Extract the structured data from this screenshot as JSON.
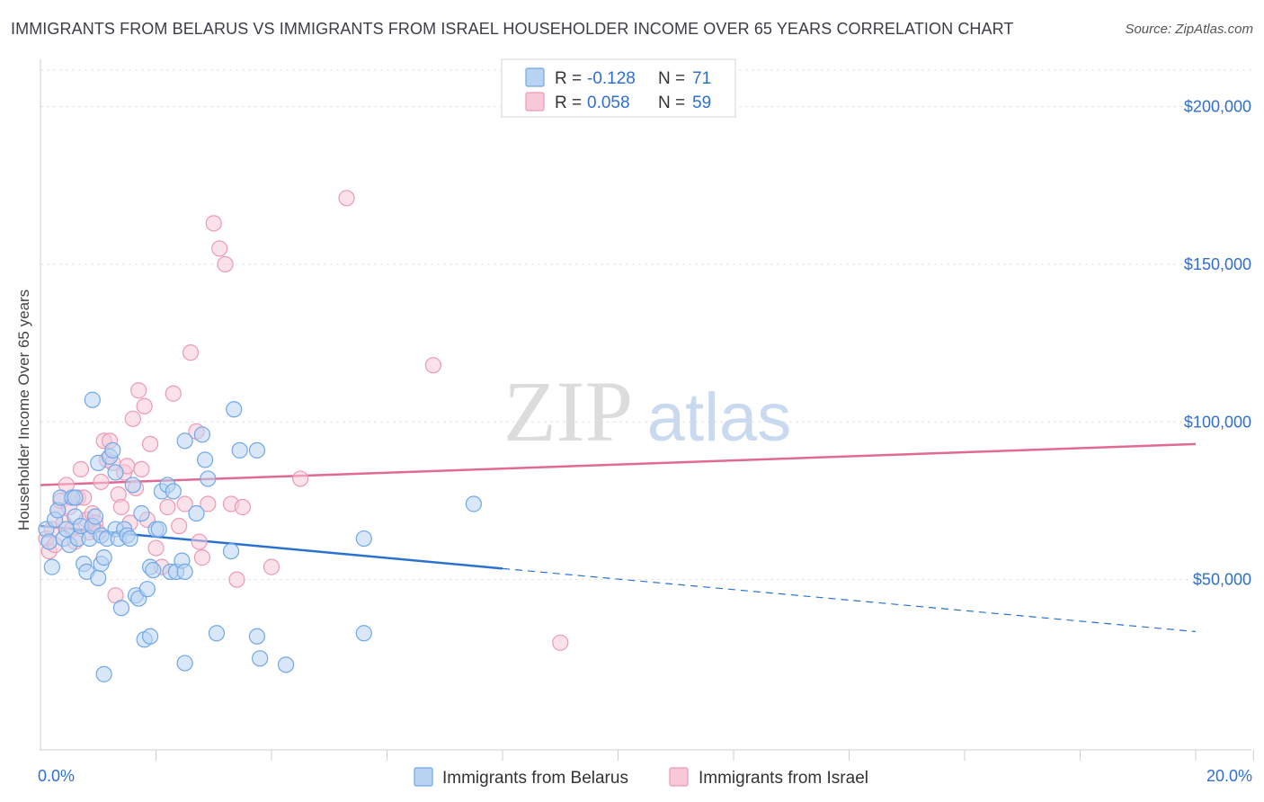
{
  "title": "IMMIGRANTS FROM BELARUS VS IMMIGRANTS FROM ISRAEL HOUSEHOLDER INCOME OVER 65 YEARS CORRELATION CHART",
  "source": "Source: ZipAtlas.com",
  "watermark": {
    "zip": "ZIP",
    "atlas": "atlas"
  },
  "colors": {
    "belarus": "#6fa8e8",
    "belarus_fill": "#b9d3f3",
    "belarus_line": "#2a72d0",
    "israel": "#ec9ab4",
    "israel_fill": "#f7c8d7",
    "israel_line": "#e06a93",
    "value_text": "#2f6fcf",
    "grid": "#e2e2e2"
  },
  "legend": {
    "row1": {
      "r_label": "R =",
      "r_value": "-0.128",
      "n_label": "N =",
      "n_value": "71"
    },
    "row2": {
      "r_label": "R =",
      "r_value": "0.058",
      "n_label": "N =",
      "n_value": "59"
    }
  },
  "chart_data": {
    "type": "scatter",
    "title": "IMMIGRANTS FROM BELARUS VS IMMIGRANTS FROM ISRAEL HOUSEHOLDER INCOME OVER 65 YEARS CORRELATION CHART",
    "xlabel": "",
    "ylabel": "Householder Income Over 65 years",
    "xlim": [
      0,
      20
    ],
    "ylim": [
      0,
      215000
    ],
    "x_tick_labels": [
      {
        "value": 0,
        "label": "0.0%"
      },
      {
        "value": 20,
        "label": "20.0%"
      }
    ],
    "y_ticks": [
      {
        "value": 50000,
        "label": "$50,000"
      },
      {
        "value": 100000,
        "label": "$100,000"
      },
      {
        "value": 150000,
        "label": "$150,000"
      },
      {
        "value": 200000,
        "label": "$200,000"
      }
    ],
    "series": [
      {
        "name": "Immigrants from Belarus",
        "color": "#6fa8e8",
        "r": -0.128,
        "n": 71,
        "trend": {
          "x0": 0,
          "y0": 67000,
          "x1": 8,
          "y1": 53500,
          "dash_x1": 20,
          "dash_y1": 33500
        },
        "points": [
          [
            0.1,
            66000
          ],
          [
            0.15,
            62000
          ],
          [
            0.2,
            54000
          ],
          [
            0.25,
            69000
          ],
          [
            0.3,
            72000
          ],
          [
            0.35,
            76000
          ],
          [
            0.4,
            63000
          ],
          [
            0.45,
            66000
          ],
          [
            0.5,
            61000
          ],
          [
            0.55,
            76000
          ],
          [
            0.6,
            70000
          ],
          [
            0.65,
            63000
          ],
          [
            0.7,
            67000
          ],
          [
            0.75,
            55000
          ],
          [
            0.8,
            52500
          ],
          [
            0.85,
            63000
          ],
          [
            0.9,
            67000
          ],
          [
            0.95,
            70000
          ],
          [
            1.0,
            50500
          ],
          [
            1.05,
            64000
          ],
          [
            1.0,
            87000
          ],
          [
            1.05,
            55000
          ],
          [
            1.1,
            57000
          ],
          [
            1.15,
            63000
          ],
          [
            1.2,
            89000
          ],
          [
            1.25,
            91000
          ],
          [
            1.3,
            84000
          ],
          [
            1.3,
            66000
          ],
          [
            1.35,
            63000
          ],
          [
            1.4,
            41000
          ],
          [
            1.45,
            66000
          ],
          [
            1.5,
            64000
          ],
          [
            1.55,
            63000
          ],
          [
            1.6,
            80000
          ],
          [
            1.65,
            45000
          ],
          [
            1.7,
            44000
          ],
          [
            1.75,
            71000
          ],
          [
            1.8,
            31000
          ],
          [
            1.85,
            47000
          ],
          [
            1.9,
            54000
          ],
          [
            1.95,
            53000
          ],
          [
            2.0,
            66000
          ],
          [
            2.05,
            66000
          ],
          [
            2.1,
            78000
          ],
          [
            2.2,
            80000
          ],
          [
            2.25,
            52500
          ],
          [
            2.3,
            78000
          ],
          [
            2.35,
            52500
          ],
          [
            2.45,
            56000
          ],
          [
            2.5,
            52500
          ],
          [
            2.5,
            23500
          ],
          [
            2.5,
            94000
          ],
          [
            2.8,
            96000
          ],
          [
            2.85,
            88000
          ],
          [
            2.9,
            82000
          ],
          [
            3.05,
            33000
          ],
          [
            3.3,
            59000
          ],
          [
            3.35,
            104000
          ],
          [
            3.45,
            91000
          ],
          [
            3.75,
            32000
          ],
          [
            3.8,
            25000
          ],
          [
            3.75,
            91000
          ],
          [
            4.25,
            23000
          ],
          [
            5.6,
            33000
          ],
          [
            5.6,
            63000
          ],
          [
            7.5,
            74000
          ],
          [
            0.9,
            107000
          ],
          [
            1.1,
            20000
          ],
          [
            0.6,
            76000
          ],
          [
            1.9,
            32000
          ],
          [
            2.7,
            71000
          ]
        ]
      },
      {
        "name": "Immigrants from Israel",
        "color": "#ec9ab4",
        "r": 0.058,
        "n": 59,
        "trend": {
          "x0": 0,
          "y0": 80000,
          "x1": 20,
          "y1": 93000
        },
        "points": [
          [
            0.1,
            63000
          ],
          [
            0.15,
            59000
          ],
          [
            0.2,
            66000
          ],
          [
            0.25,
            61000
          ],
          [
            0.3,
            72000
          ],
          [
            0.35,
            75000
          ],
          [
            0.4,
            68000
          ],
          [
            0.45,
            80000
          ],
          [
            0.5,
            73000
          ],
          [
            0.55,
            66000
          ],
          [
            0.6,
            62000
          ],
          [
            0.65,
            76000
          ],
          [
            0.7,
            85000
          ],
          [
            0.75,
            76000
          ],
          [
            0.8,
            69000
          ],
          [
            0.85,
            65000
          ],
          [
            0.9,
            71000
          ],
          [
            0.95,
            68000
          ],
          [
            1.0,
            65000
          ],
          [
            1.05,
            81000
          ],
          [
            1.1,
            94000
          ],
          [
            1.15,
            88000
          ],
          [
            1.2,
            94000
          ],
          [
            1.25,
            87000
          ],
          [
            1.3,
            45000
          ],
          [
            1.35,
            77000
          ],
          [
            1.4,
            73000
          ],
          [
            1.45,
            84000
          ],
          [
            1.5,
            86000
          ],
          [
            1.55,
            68000
          ],
          [
            1.6,
            101000
          ],
          [
            1.65,
            79000
          ],
          [
            1.7,
            110000
          ],
          [
            1.75,
            85000
          ],
          [
            1.8,
            105000
          ],
          [
            1.85,
            69000
          ],
          [
            1.9,
            93000
          ],
          [
            2.0,
            60000
          ],
          [
            2.1,
            54000
          ],
          [
            2.2,
            73000
          ],
          [
            2.3,
            109000
          ],
          [
            2.4,
            67000
          ],
          [
            2.5,
            74000
          ],
          [
            2.6,
            122000
          ],
          [
            2.7,
            97000
          ],
          [
            2.75,
            62000
          ],
          [
            2.8,
            57000
          ],
          [
            2.9,
            74000
          ],
          [
            3.0,
            163000
          ],
          [
            3.1,
            155000
          ],
          [
            3.2,
            150000
          ],
          [
            3.3,
            74000
          ],
          [
            3.4,
            50000
          ],
          [
            3.5,
            73000
          ],
          [
            4.0,
            54000
          ],
          [
            4.5,
            82000
          ],
          [
            5.3,
            171000
          ],
          [
            6.8,
            118000
          ],
          [
            9.0,
            30000
          ]
        ]
      }
    ]
  },
  "bottom_legend": {
    "item1": "Immigrants from Belarus",
    "item2": "Immigrants from Israel"
  }
}
